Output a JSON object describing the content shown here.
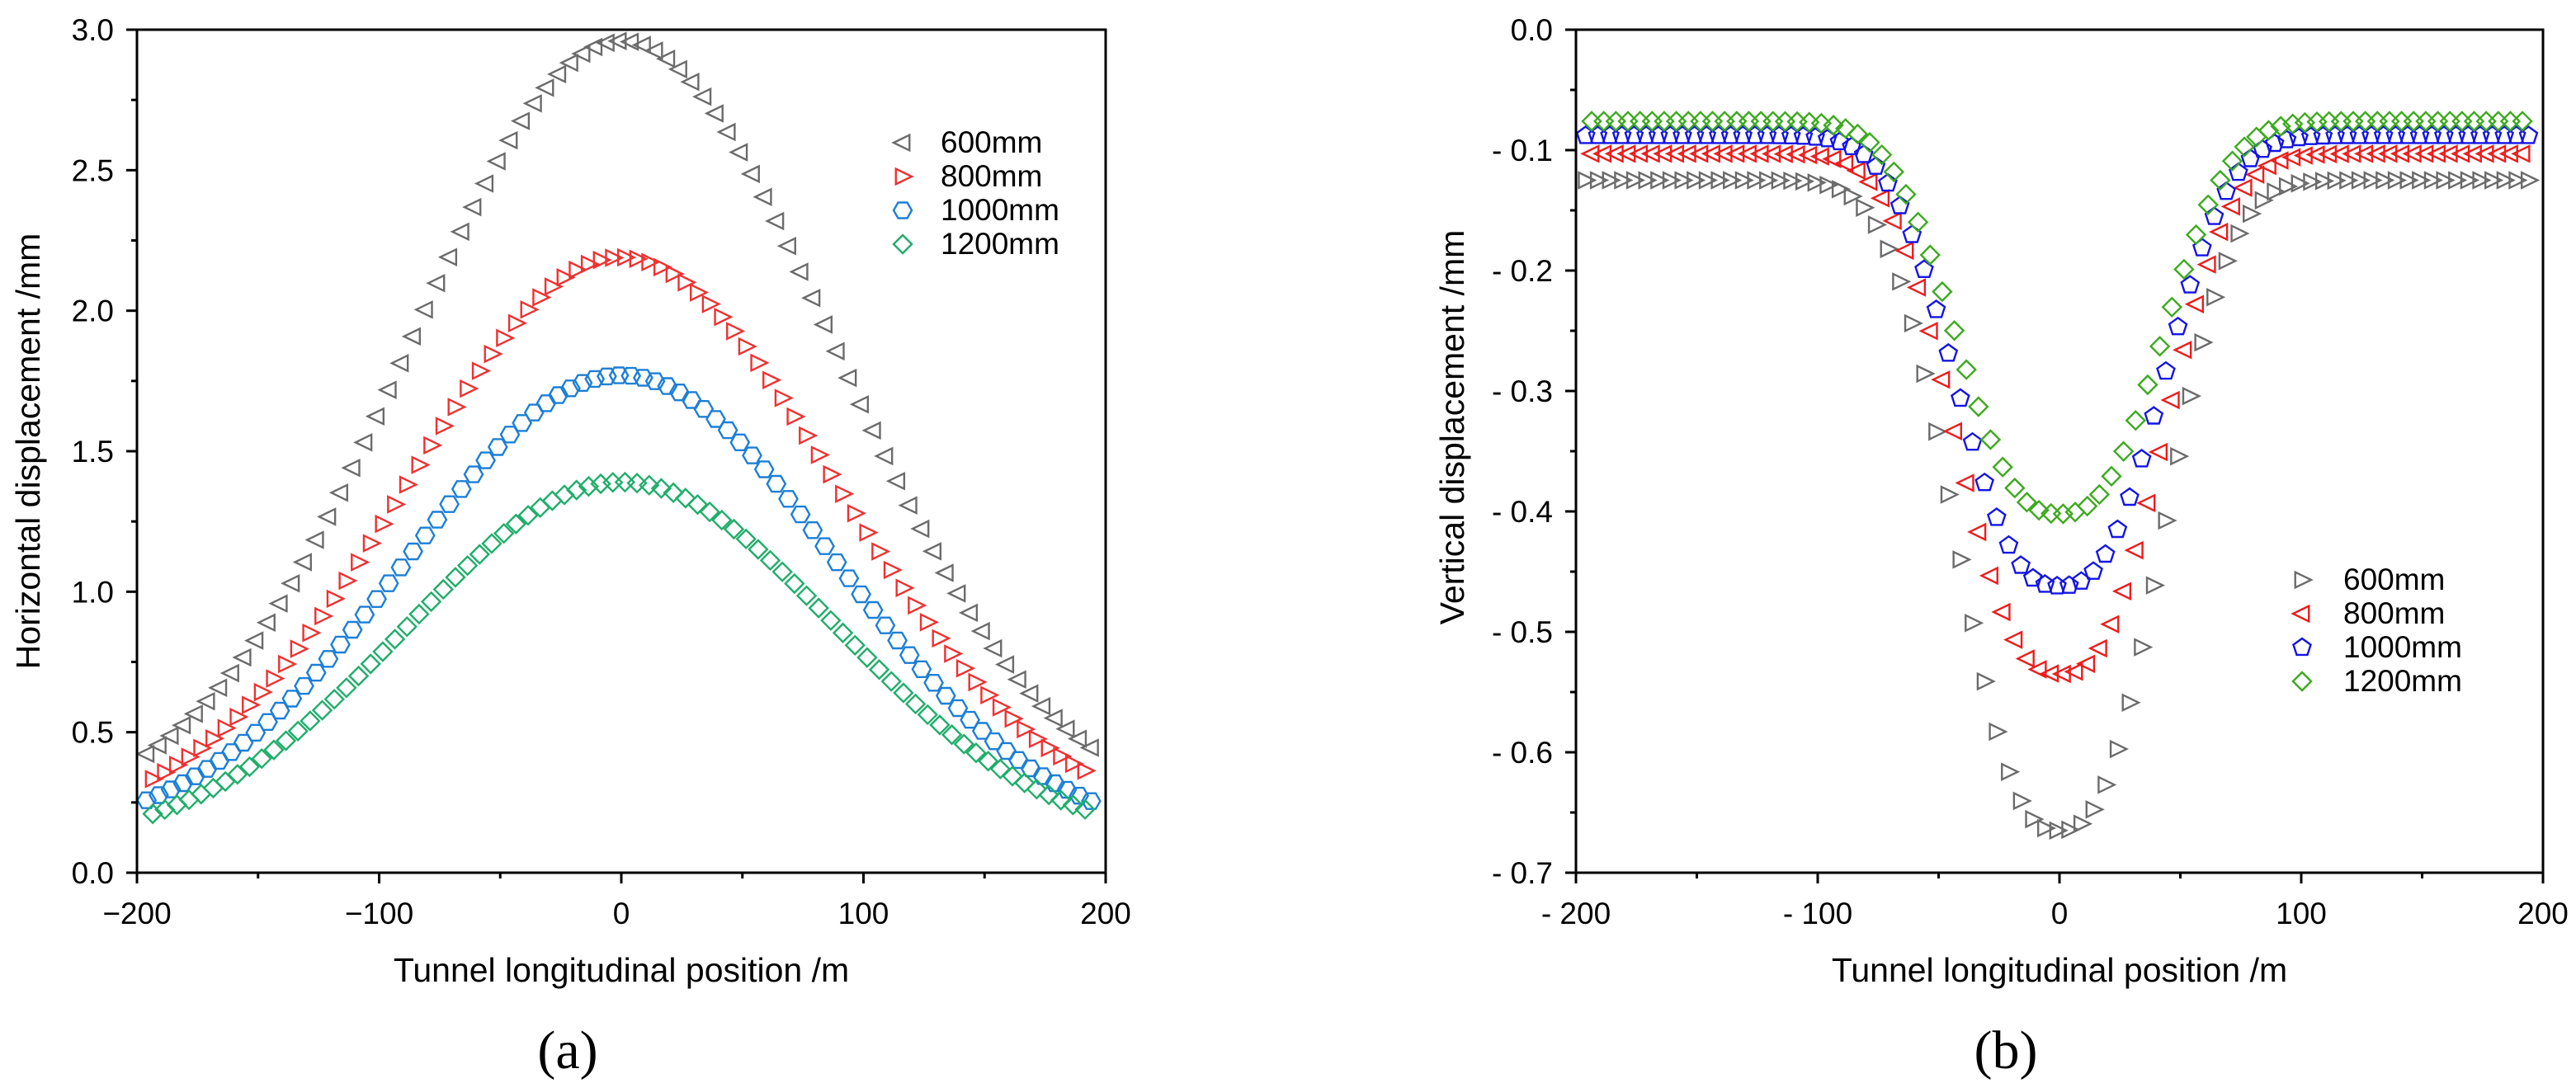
{
  "chart_data": [
    {
      "id": "a",
      "panel_label": "(a)",
      "type": "scatter",
      "xlabel": "Tunnel longitudinal position /m",
      "ylabel": "Horizontal  displacement /mm",
      "xlim": [
        -200,
        200
      ],
      "ylim": [
        0,
        3.0
      ],
      "xticks": [
        -200,
        -100,
        0,
        100,
        200
      ],
      "xtick_labels": [
        "−200",
        "−100",
        "0",
        "100",
        "200"
      ],
      "yticks": [
        0,
        0.5,
        1.0,
        1.5,
        2.0,
        2.5,
        3.0
      ],
      "ytick_labels": [
        "0.0",
        "0.5",
        "1.0",
        "1.5",
        "2.0",
        "2.5",
        "3.0"
      ],
      "legend_position": "top-right",
      "series": [
        {
          "name": "600mm",
          "marker": "triangle-left",
          "color": "#6b6b6b",
          "peak": 2.96,
          "edge_left": 0.46,
          "edge_right": 0.47
        },
        {
          "name": "800mm",
          "marker": "triangle-right",
          "color": "#f03030",
          "peak": 2.19,
          "edge_left": 0.35,
          "edge_right": 0.37
        },
        {
          "name": "1000mm",
          "marker": "hexagon",
          "color": "#1c7fd6",
          "peak": 1.77,
          "edge_left": 0.28,
          "edge_right": 0.27
        },
        {
          "name": "1200mm",
          "marker": "diamond",
          "color": "#1fae6a",
          "peak": 1.39,
          "edge_left": 0.22,
          "edge_right": 0.23
        }
      ]
    },
    {
      "id": "b",
      "panel_label": "(b)",
      "type": "scatter",
      "xlabel": "Tunnel longitudinal position /m",
      "ylabel": "Vertical displacement /mm",
      "xlim": [
        -200,
        200
      ],
      "ylim": [
        -0.7,
        0.0
      ],
      "xticks": [
        -200,
        -100,
        0,
        100,
        200
      ],
      "xtick_labels": [
        "- 200",
        "- 100",
        "0",
        "100",
        "200"
      ],
      "yticks": [
        0,
        -0.1,
        -0.2,
        -0.3,
        -0.4,
        -0.5,
        -0.6,
        -0.7
      ],
      "ytick_labels": [
        "0.0",
        "- 0.1",
        "- 0.2",
        "- 0.3",
        "- 0.4",
        "- 0.5",
        "- 0.6",
        "- 0.7"
      ],
      "legend_position": "bottom-right",
      "series": [
        {
          "name": "600mm",
          "marker": "triangle-right",
          "color": "#6b6b6b",
          "base": -0.125,
          "trough": -0.665
        },
        {
          "name": "800mm",
          "marker": "triangle-left",
          "color": "#ee1c1c",
          "base": -0.103,
          "trough": -0.535
        },
        {
          "name": "1000mm",
          "marker": "pentagon",
          "color": "#1414e6",
          "base": -0.088,
          "trough": -0.462
        },
        {
          "name": "1200mm",
          "marker": "diamond",
          "color": "#3caa1e",
          "base": -0.076,
          "trough": -0.402
        }
      ]
    }
  ]
}
